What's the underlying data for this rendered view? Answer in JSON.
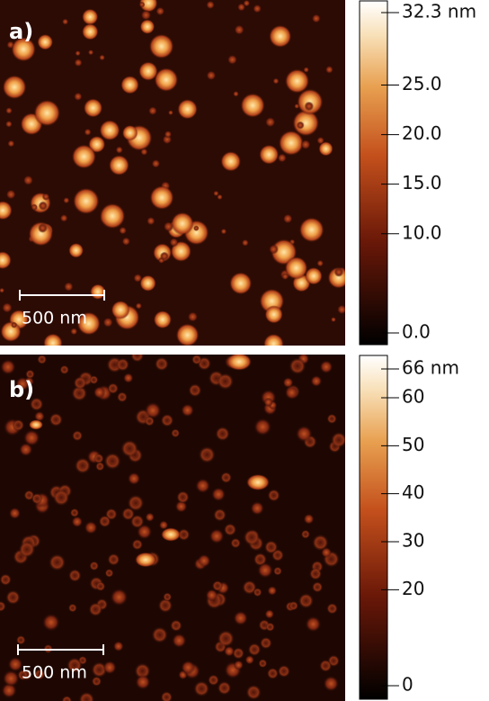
{
  "panels": [
    {
      "label": "a)",
      "scale_bar": "500 nm",
      "colorbar": {
        "lim": [
          0,
          32.3
        ],
        "ticks": [
          {
            "value": 0,
            "label": "0.0"
          },
          {
            "value": 10,
            "label": "10.0"
          },
          {
            "value": 15,
            "label": "15.0"
          },
          {
            "value": 20,
            "label": "20.0"
          },
          {
            "value": 25,
            "label": "25.0"
          },
          {
            "value": 32.3,
            "label": "32.3 nm"
          }
        ]
      }
    },
    {
      "label": "b)",
      "scale_bar": "500 nm",
      "colorbar": {
        "lim": [
          0,
          66
        ],
        "ticks": [
          0,
          20,
          30,
          40,
          50,
          60,
          {
            "value": 66,
            "label": "66 nm"
          }
        ]
      }
    }
  ]
}
